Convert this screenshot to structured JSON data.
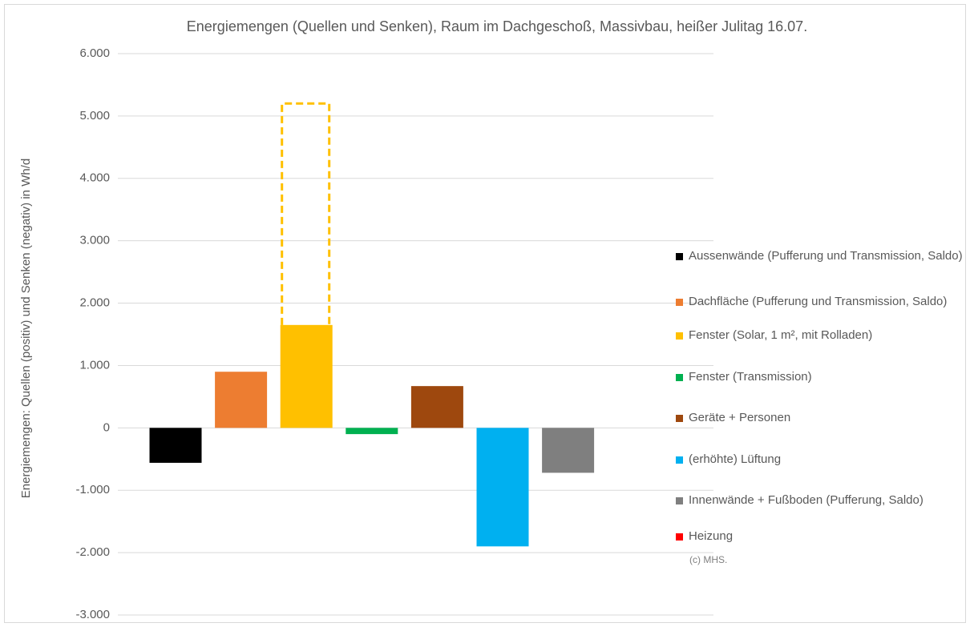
{
  "chart_data": {
    "type": "bar",
    "title": "Energiemengen (Quellen und Senken), Raum im Dachgeschoß, Massivbau, heißer Julitag 16.07.",
    "y_label": "Energiemengen: Quellen (positiv) und Senken (negativ) in Wh/d",
    "note": "(c) MHS.",
    "ylim": [
      -3000,
      6000
    ],
    "yticks": [
      {
        "value": -3000,
        "label": "-3.000"
      },
      {
        "value": -2000,
        "label": "-2.000"
      },
      {
        "value": -1000,
        "label": "-1.000"
      },
      0,
      {
        "value": 1000,
        "label": "1.000"
      },
      {
        "value": 2000,
        "label": "2.000"
      },
      {
        "value": 3000,
        "label": "3.000"
      },
      {
        "value": 4000,
        "label": "4.000"
      },
      {
        "value": 5000,
        "label": "5.000"
      },
      {
        "value": 6000,
        "label": "6.000"
      }
    ],
    "grid": true,
    "legend": "right",
    "series": [
      {
        "name": "Aussenwände (Pufferung und Transmission, Saldo)",
        "color": "#000000",
        "values": [
          -560
        ]
      },
      {
        "name": "Dachfläche (Pufferung und Transmission, Saldo)",
        "color": "#ed7d31",
        "values": [
          900
        ]
      },
      {
        "name": "Fenster (Solar, 1 m², mit Rolladen)",
        "color": "#ffc000",
        "values": [
          1650
        ],
        "outline_value": 5200
      },
      {
        "name": "Fenster (Transmission)",
        "color": "#00b050",
        "values": [
          -100
        ]
      },
      {
        "name": "Geräte + Personen",
        "color": "#9e480e",
        "values": [
          670
        ]
      },
      {
        "name": "(erhöhte) Lüftung",
        "color": "#00b0f0",
        "values": [
          -1900
        ]
      },
      {
        "name": "Innenwände + Fußboden (Pufferung, Saldo)",
        "color": "#7f7f7f",
        "values": [
          -720
        ]
      },
      {
        "name": "Heizung",
        "color": "#ff0000",
        "values": [
          0
        ]
      }
    ]
  }
}
